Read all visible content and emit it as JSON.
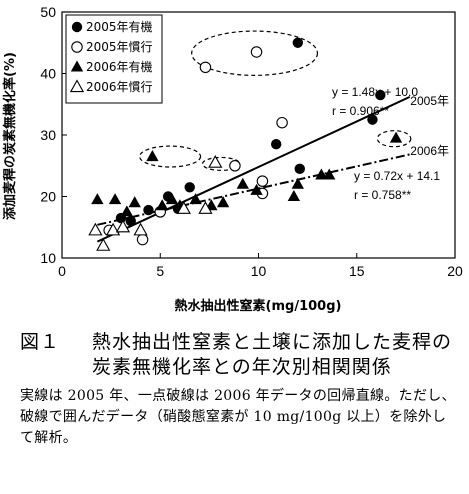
{
  "chart_data": {
    "type": "scatter",
    "xlabel": "熱水抽出性窒素(mg/100g)",
    "ylabel": "添加麦稈の炭素無機化率(%)",
    "xlim": [
      0,
      20
    ],
    "ylim": [
      10,
      50
    ],
    "x_ticks": [
      "0",
      "5",
      "10",
      "15",
      "20"
    ],
    "y_ticks": [
      "10",
      "20",
      "30",
      "40",
      "50"
    ],
    "grid": false,
    "legend_position": "top-left",
    "series": [
      {
        "name": "2005年有機",
        "marker": "filled-circle",
        "points": [
          {
            "x": 3.0,
            "y": 16.5
          },
          {
            "x": 3.5,
            "y": 16.0
          },
          {
            "x": 4.4,
            "y": 17.8
          },
          {
            "x": 5.4,
            "y": 20.0
          },
          {
            "x": 5.9,
            "y": 18.0
          },
          {
            "x": 6.5,
            "y": 21.5
          },
          {
            "x": 10.9,
            "y": 28.5
          },
          {
            "x": 12.1,
            "y": 24.5
          },
          {
            "x": 15.8,
            "y": 32.5
          },
          {
            "x": 16.2,
            "y": 36.5
          },
          {
            "x": 12.0,
            "y": 45.0
          }
        ]
      },
      {
        "name": "2005年慣行",
        "marker": "open-circle",
        "points": [
          {
            "x": 2.4,
            "y": 14.5
          },
          {
            "x": 4.1,
            "y": 13.0
          },
          {
            "x": 5.0,
            "y": 17.5
          },
          {
            "x": 8.8,
            "y": 25.0
          },
          {
            "x": 10.2,
            "y": 20.5
          },
          {
            "x": 10.2,
            "y": 22.5
          },
          {
            "x": 11.2,
            "y": 32.0
          },
          {
            "x": 7.3,
            "y": 41.0
          },
          {
            "x": 9.9,
            "y": 43.5
          }
        ]
      },
      {
        "name": "2006年有機",
        "marker": "filled-triangle",
        "points": [
          {
            "x": 1.8,
            "y": 19.5
          },
          {
            "x": 2.7,
            "y": 19.5
          },
          {
            "x": 3.3,
            "y": 17.5
          },
          {
            "x": 3.7,
            "y": 19.0
          },
          {
            "x": 5.1,
            "y": 18.5
          },
          {
            "x": 5.6,
            "y": 19.5
          },
          {
            "x": 6.0,
            "y": 18.5
          },
          {
            "x": 6.8,
            "y": 19.5
          },
          {
            "x": 7.6,
            "y": 18.5
          },
          {
            "x": 8.2,
            "y": 19.0
          },
          {
            "x": 9.2,
            "y": 22.0
          },
          {
            "x": 9.9,
            "y": 21.0
          },
          {
            "x": 11.8,
            "y": 20.0
          },
          {
            "x": 12.0,
            "y": 22.0
          },
          {
            "x": 13.2,
            "y": 23.5
          },
          {
            "x": 13.6,
            "y": 23.5
          },
          {
            "x": 4.6,
            "y": 26.5
          },
          {
            "x": 17.0,
            "y": 29.5
          }
        ]
      },
      {
        "name": "2006年慣行",
        "marker": "open-triangle",
        "points": [
          {
            "x": 1.7,
            "y": 14.5
          },
          {
            "x": 2.1,
            "y": 12.0
          },
          {
            "x": 2.6,
            "y": 14.5
          },
          {
            "x": 3.1,
            "y": 15.0
          },
          {
            "x": 4.0,
            "y": 14.5
          },
          {
            "x": 6.2,
            "y": 18.0
          },
          {
            "x": 7.3,
            "y": 18.0
          },
          {
            "x": 7.8,
            "y": 25.5
          }
        ]
      }
    ],
    "regressions": [
      {
        "label": "2005年",
        "equation": "y = 1.48x + 10.0",
        "r": "r = 0.906**",
        "slope": 1.48,
        "intercept": 10.0,
        "x_range": [
          1.8,
          17.7
        ],
        "style": "solid"
      },
      {
        "label": "2006年",
        "equation": "y = 0.72x + 14.1",
        "r": "r = 0.758**",
        "slope": 0.72,
        "intercept": 14.1,
        "x_range": [
          1.8,
          17.7
        ],
        "style": "dash-dot"
      }
    ],
    "excluded_ellipses": [
      {
        "cx": 9.8,
        "cy": 43.3,
        "rx": 3.2,
        "ry": 3.6
      },
      {
        "cx": 5.5,
        "cy": 26.5,
        "rx": 1.55,
        "ry": 1.7
      },
      {
        "cx": 8.1,
        "cy": 25.3,
        "rx": 0.95,
        "ry": 1.05
      },
      {
        "cx": 16.9,
        "cy": 29.4,
        "rx": 0.85,
        "ry": 1.3
      }
    ]
  },
  "caption": {
    "number": "図１",
    "title": "熱水抽出性窒素と土壌に添加した麦稈の炭素無機化率との年次別相関関係",
    "note": "実線は 2005 年、一点破線は 2006 年データの回帰直線。ただし、破線で囲んだデータ（硝酸態窒素が 10 mg/100g 以上）を除外して解析。"
  }
}
